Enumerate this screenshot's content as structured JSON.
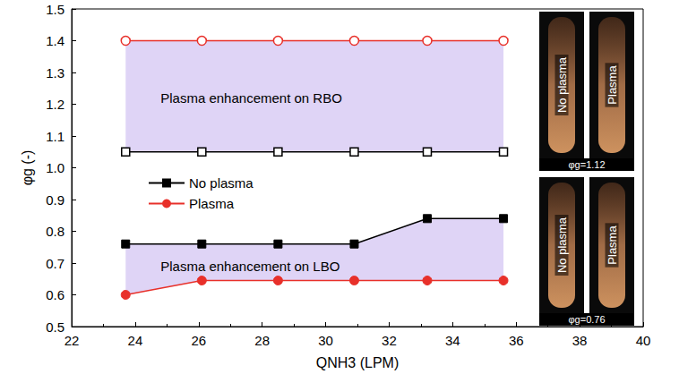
{
  "chart_data": {
    "type": "line",
    "x_label": "QNH3 (LPM)",
    "y_label": "φg (-)",
    "x": [
      23.7,
      26.1,
      28.5,
      30.9,
      33.2,
      35.6
    ],
    "xlim": [
      22,
      40
    ],
    "xticks": [
      22,
      24,
      26,
      28,
      30,
      32,
      34,
      36,
      38,
      40
    ],
    "ylim": [
      0.5,
      1.5
    ],
    "yticks": [
      0.5,
      0.6,
      0.7,
      0.8,
      0.9,
      {
        "value": 1,
        "label": "1.0"
      },
      1.1,
      1.2,
      1.3,
      1.4,
      1.5
    ],
    "legend": "left",
    "series": [
      {
        "name": "No plasma",
        "color": "#000000",
        "marker": "square",
        "values": [
          0.76,
          0.76,
          0.76,
          0.76,
          0.84,
          0.84
        ],
        "rbo_values": [
          1.05,
          1.05,
          1.05,
          1.05,
          1.05,
          1.05
        ]
      },
      {
        "name": "Plasma",
        "color": "#e8302a",
        "marker": "circle",
        "values": [
          0.6,
          0.645,
          0.645,
          0.645,
          0.645,
          0.645
        ],
        "rbo_values": [
          1.4,
          1.4,
          1.4,
          1.4,
          1.4,
          1.4
        ]
      }
    ],
    "annotations": [
      {
        "text": "Plasma enhancement on RBO",
        "x": 24.8,
        "y": 1.22
      },
      {
        "text": "Plasma enhancement on LBO",
        "x": 24.8,
        "y": 0.69
      }
    ],
    "insets": [
      {
        "labels": [
          "No plasma",
          "Plasma"
        ],
        "caption": "φg=1.12"
      },
      {
        "labels": [
          "No plasma",
          "Plasma"
        ],
        "caption": "φg=0.76"
      }
    ]
  }
}
